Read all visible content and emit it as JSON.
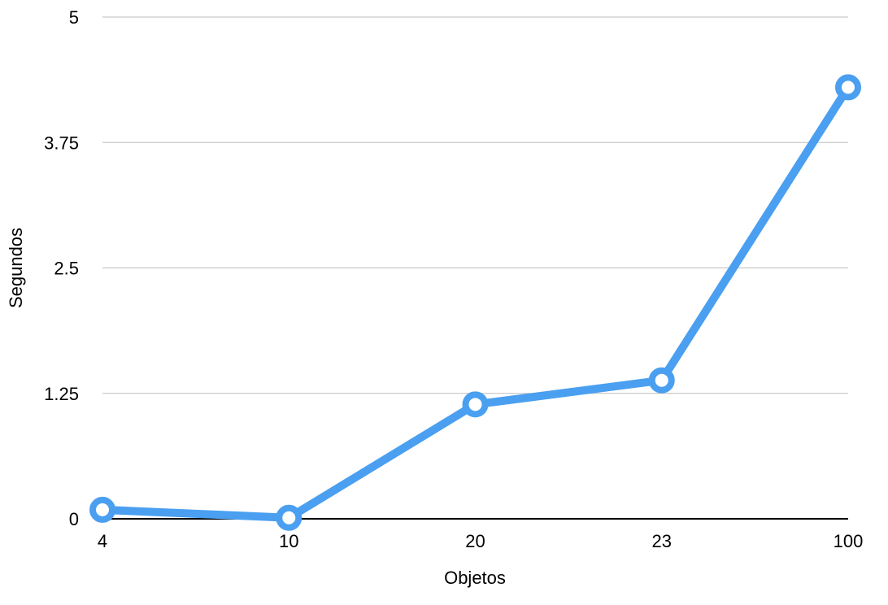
{
  "chart_data": {
    "type": "line",
    "title": "",
    "xlabel": "Objetos",
    "ylabel": "Segundos",
    "categories": [
      "4",
      "10",
      "20",
      "23",
      "100"
    ],
    "series": [
      {
        "values": [
          0.09,
          0.01,
          1.14,
          1.38,
          4.3
        ],
        "color": "#4A9FF0"
      }
    ],
    "ylim": [
      0,
      5
    ],
    "yticks": [
      "0",
      "1.25",
      "2.5",
      "3.75",
      "5"
    ],
    "grid": true,
    "legend": "none"
  }
}
